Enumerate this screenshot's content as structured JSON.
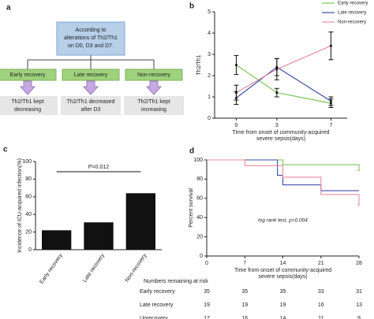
{
  "diagram": {
    "label": "a",
    "top": [
      "According to",
      "alterations of Th2/Th1",
      "on D0, D3 and D7."
    ],
    "groups": [
      {
        "name": "Early recovery",
        "result": [
          "Th2/Th1 kept",
          "decreasing"
        ]
      },
      {
        "name": "Late recovery",
        "result": [
          "Th2/Th1 decreased",
          "after D3"
        ]
      },
      {
        "name": "Non-recovery",
        "result": [
          "Th2/Th1 kept",
          "increasing"
        ]
      }
    ]
  },
  "chart_data": [
    {
      "type": "line",
      "label": "b",
      "ylabel": "Th2/Th1",
      "xlabel": [
        "Time from onset of community-acquired",
        "severe sepsis(days)"
      ],
      "x": [
        0,
        3,
        7
      ],
      "xlim": [
        -1.6,
        8.2
      ],
      "xticks": [
        0,
        3,
        7
      ],
      "ylim": [
        0,
        5
      ],
      "yticks": [
        0,
        1,
        2,
        3,
        4,
        5
      ],
      "series": [
        {
          "name": "Early recovery",
          "color": "#7cc35a",
          "values": [
            2.5,
            1.2,
            0.7
          ],
          "errors": [
            0.45,
            0.2,
            0.2
          ]
        },
        {
          "name": "Late recovery",
          "color": "#3b4ea6",
          "values": [
            0.95,
            2.4,
            0.8
          ],
          "errors": [
            0.3,
            0.4,
            0.2
          ]
        },
        {
          "name": "Non-recovery",
          "color": "#e98c9c",
          "values": [
            1.2,
            2.3,
            3.4
          ],
          "errors": [
            0.35,
            0.5,
            0.65
          ]
        }
      ]
    },
    {
      "type": "bar",
      "label": "c",
      "ylabel": "Incidence of ICU-acquired infection(%)",
      "annotation": "P=0.012",
      "categories": [
        "Early recovery",
        "Late recovery",
        "Non-recovery"
      ],
      "values": [
        22,
        31,
        64
      ],
      "color": "#111111",
      "ylim": [
        0,
        100
      ],
      "yticks": [
        0,
        20,
        40,
        60,
        80,
        100
      ]
    },
    {
      "type": "step",
      "label": "d",
      "ylabel": "Percent survival",
      "xlabel": [
        "Time from onset of community-acquired",
        "severe sepsis(days)"
      ],
      "annotation": "log rank test, p=0.004",
      "xlim": [
        0,
        28
      ],
      "xticks": [
        0,
        7,
        14,
        21,
        28
      ],
      "ylim": [
        0,
        100
      ],
      "yticks": [
        0,
        20,
        40,
        60,
        80,
        100
      ],
      "series": [
        {
          "name": "Early recovery",
          "color": "#7cc35a",
          "x": [
            0,
            14,
            28
          ],
          "values": [
            100,
            95,
            89
          ]
        },
        {
          "name": "Late recovery",
          "color": "#3b4ea6",
          "x": [
            0,
            13,
            14,
            21,
            28
          ],
          "values": [
            100,
            84,
            74,
            68,
            68
          ]
        },
        {
          "name": "Unrecovery",
          "color": "#e98c9c",
          "x": [
            0,
            7,
            14,
            21,
            28
          ],
          "values": [
            100,
            94,
            82,
            64,
            53
          ]
        }
      ],
      "risk_table": {
        "title": "Numbers remaining at risk",
        "rows": [
          {
            "name": "Early recovery",
            "values": [
              35,
              35,
              35,
              33,
              31
            ]
          },
          {
            "name": "Late recovery",
            "values": [
              19,
              19,
              19,
              16,
              13
            ]
          },
          {
            "name": "Unrecovery",
            "values": [
              17,
              16,
              14,
              11,
              9
            ]
          }
        ]
      }
    }
  ]
}
